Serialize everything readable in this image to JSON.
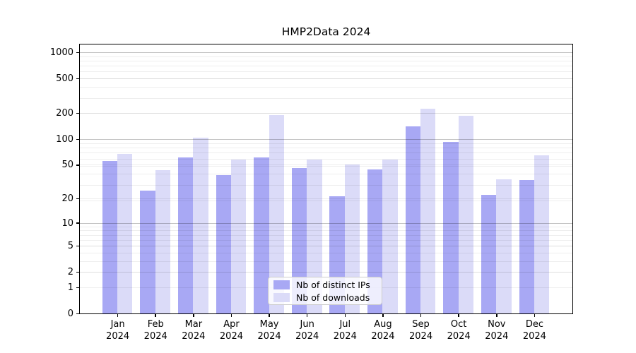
{
  "chart_data": {
    "type": "bar",
    "title": "HMP2Data 2024",
    "categories": [
      "Jan",
      "Feb",
      "Mar",
      "Apr",
      "May",
      "Jun",
      "Jul",
      "Aug",
      "Sep",
      "Oct",
      "Nov",
      "Dec"
    ],
    "year_label": "2024",
    "series": [
      {
        "name": "Nb of distinct IPs",
        "color": "#a8a8f4",
        "values": [
          55,
          25,
          61,
          38,
          61,
          46,
          21,
          44,
          140,
          92,
          22,
          33
        ]
      },
      {
        "name": "Nb of downloads",
        "color": "#dbdbf8",
        "values": [
          67,
          43,
          104,
          58,
          190,
          58,
          50,
          58,
          222,
          185,
          34,
          65
        ]
      }
    ],
    "xlabel": "",
    "ylabel": "",
    "yscale": "log10(value+1)",
    "yticks": [
      1000,
      500,
      200,
      100,
      50,
      20,
      10,
      5,
      2,
      1,
      0
    ],
    "ylim": [
      0,
      1230
    ],
    "grid": "horizontal, log minor gridlines, darker lines at 10/100/1000",
    "legend_position": "lower center inside plot"
  }
}
